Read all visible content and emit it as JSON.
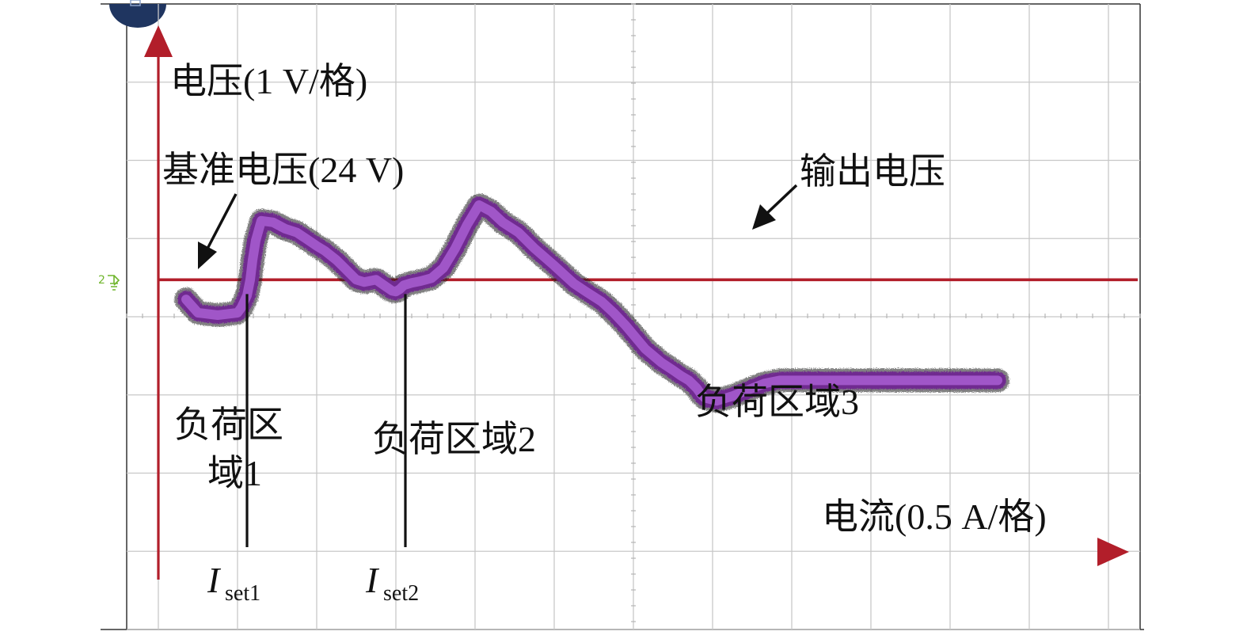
{
  "chart_data": {
    "type": "line",
    "xlabel": "电流(0.5 A/格)",
    "ylabel": "电压(1 V/格)",
    "grid": true,
    "x_divisions": 12,
    "y_divisions": 8,
    "x_unit_per_div": 0.5,
    "y_unit_per_div": 1,
    "reference": {
      "label": "基准电压(24 V)",
      "value": 24
    },
    "series": [
      {
        "name": "输出电压",
        "x": [
          0.35,
          0.5,
          0.75,
          1.0,
          1.05,
          1.12,
          1.16,
          1.19,
          1.23,
          1.3,
          1.45,
          1.6,
          1.75,
          1.9,
          2.0,
          2.1,
          2.25,
          2.35,
          2.45,
          2.5,
          2.6,
          2.75,
          2.85,
          2.95,
          3.0,
          3.05,
          3.1,
          3.2,
          3.3,
          3.45,
          3.6,
          3.75,
          3.9,
          4.05,
          4.2,
          4.35,
          4.55,
          4.75,
          5.0,
          5.25,
          5.4,
          5.6,
          5.75,
          5.9,
          6.0,
          6.15,
          6.35,
          6.5,
          6.6,
          6.7,
          6.8,
          6.85,
          6.9,
          7.05,
          7.25,
          7.45,
          7.65,
          7.85,
          8.05,
          8.25,
          8.45,
          8.65,
          8.85,
          9.0,
          9.15,
          9.3,
          9.45,
          9.6,
          9.75,
          9.9,
          10.0,
          10.1,
          10.25,
          10.4,
          10.5,
          10.55,
          10.6,
          10.6,
          10.45,
          10.25,
          10.05,
          9.85
        ],
        "y": [
          23.75,
          23.58,
          23.55,
          23.58,
          23.65,
          23.8,
          24.0,
          24.25,
          24.5,
          24.75,
          24.73,
          24.65,
          24.6,
          24.5,
          24.43,
          24.37,
          24.25,
          24.15,
          24.05,
          24.0,
          23.97,
          24.0,
          23.93,
          23.86,
          23.85,
          23.88,
          23.93,
          23.96,
          23.98,
          24.02,
          24.15,
          24.4,
          24.7,
          24.95,
          24.87,
          24.73,
          24.6,
          24.4,
          24.18,
          23.95,
          23.85,
          23.72,
          23.58,
          23.42,
          23.3,
          23.12,
          22.95,
          22.85,
          22.78,
          22.72,
          22.62,
          22.55,
          22.5,
          22.46,
          22.52,
          22.6,
          22.68,
          22.72,
          22.72,
          22.72,
          22.72,
          22.72,
          22.72,
          22.72,
          22.72,
          22.72,
          22.72,
          22.72,
          22.72,
          22.72,
          22.72,
          22.72,
          22.72,
          22.72,
          22.72,
          22.72,
          22.72,
          22.72,
          22.72,
          22.72,
          22.72,
          22.72
        ]
      }
    ],
    "markers": [
      {
        "label_main": "I",
        "label_sub": "set1",
        "x": 1.05
      },
      {
        "label_main": "I",
        "label_sub": "set2",
        "x": 3.05
      }
    ],
    "regions": [
      {
        "lines": [
          "负荷区",
          "域1"
        ]
      },
      {
        "lines": [
          "负荷区域2"
        ]
      },
      {
        "lines": [
          "负荷区域3"
        ]
      }
    ],
    "annotations": {
      "output_label": "输出电压"
    },
    "colors": {
      "axes": "#b21e2a",
      "reference": "#b21e2a",
      "trace": "#a056c8",
      "trace_dark": "#702a90",
      "grid": "#c8c8c8"
    }
  }
}
